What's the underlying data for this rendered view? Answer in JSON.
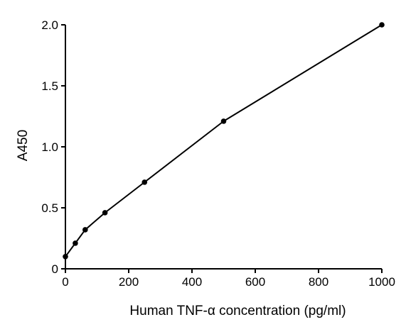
{
  "chart_data": {
    "type": "line",
    "title": "",
    "xlabel": "Human TNF-α concentration (pg/ml)",
    "ylabel": "A450",
    "xlim": [
      0,
      1000
    ],
    "ylim": [
      0,
      2.0
    ],
    "x_ticks": [
      "0",
      "200",
      "400",
      "600",
      "800",
      "1000"
    ],
    "y_ticks": [
      "0",
      "0.5",
      "1.0",
      "1.5",
      "2.0"
    ],
    "grid": false,
    "legend": "none",
    "series": [
      {
        "x": [
          0,
          31.25,
          62.5,
          125,
          250,
          500,
          1000
        ],
        "y": [
          0.1,
          0.21,
          0.32,
          0.46,
          0.71,
          1.21,
          2.0
        ]
      }
    ],
    "colors": {
      "line": "#000000",
      "marker": "#000000",
      "axis": "#000000"
    }
  }
}
